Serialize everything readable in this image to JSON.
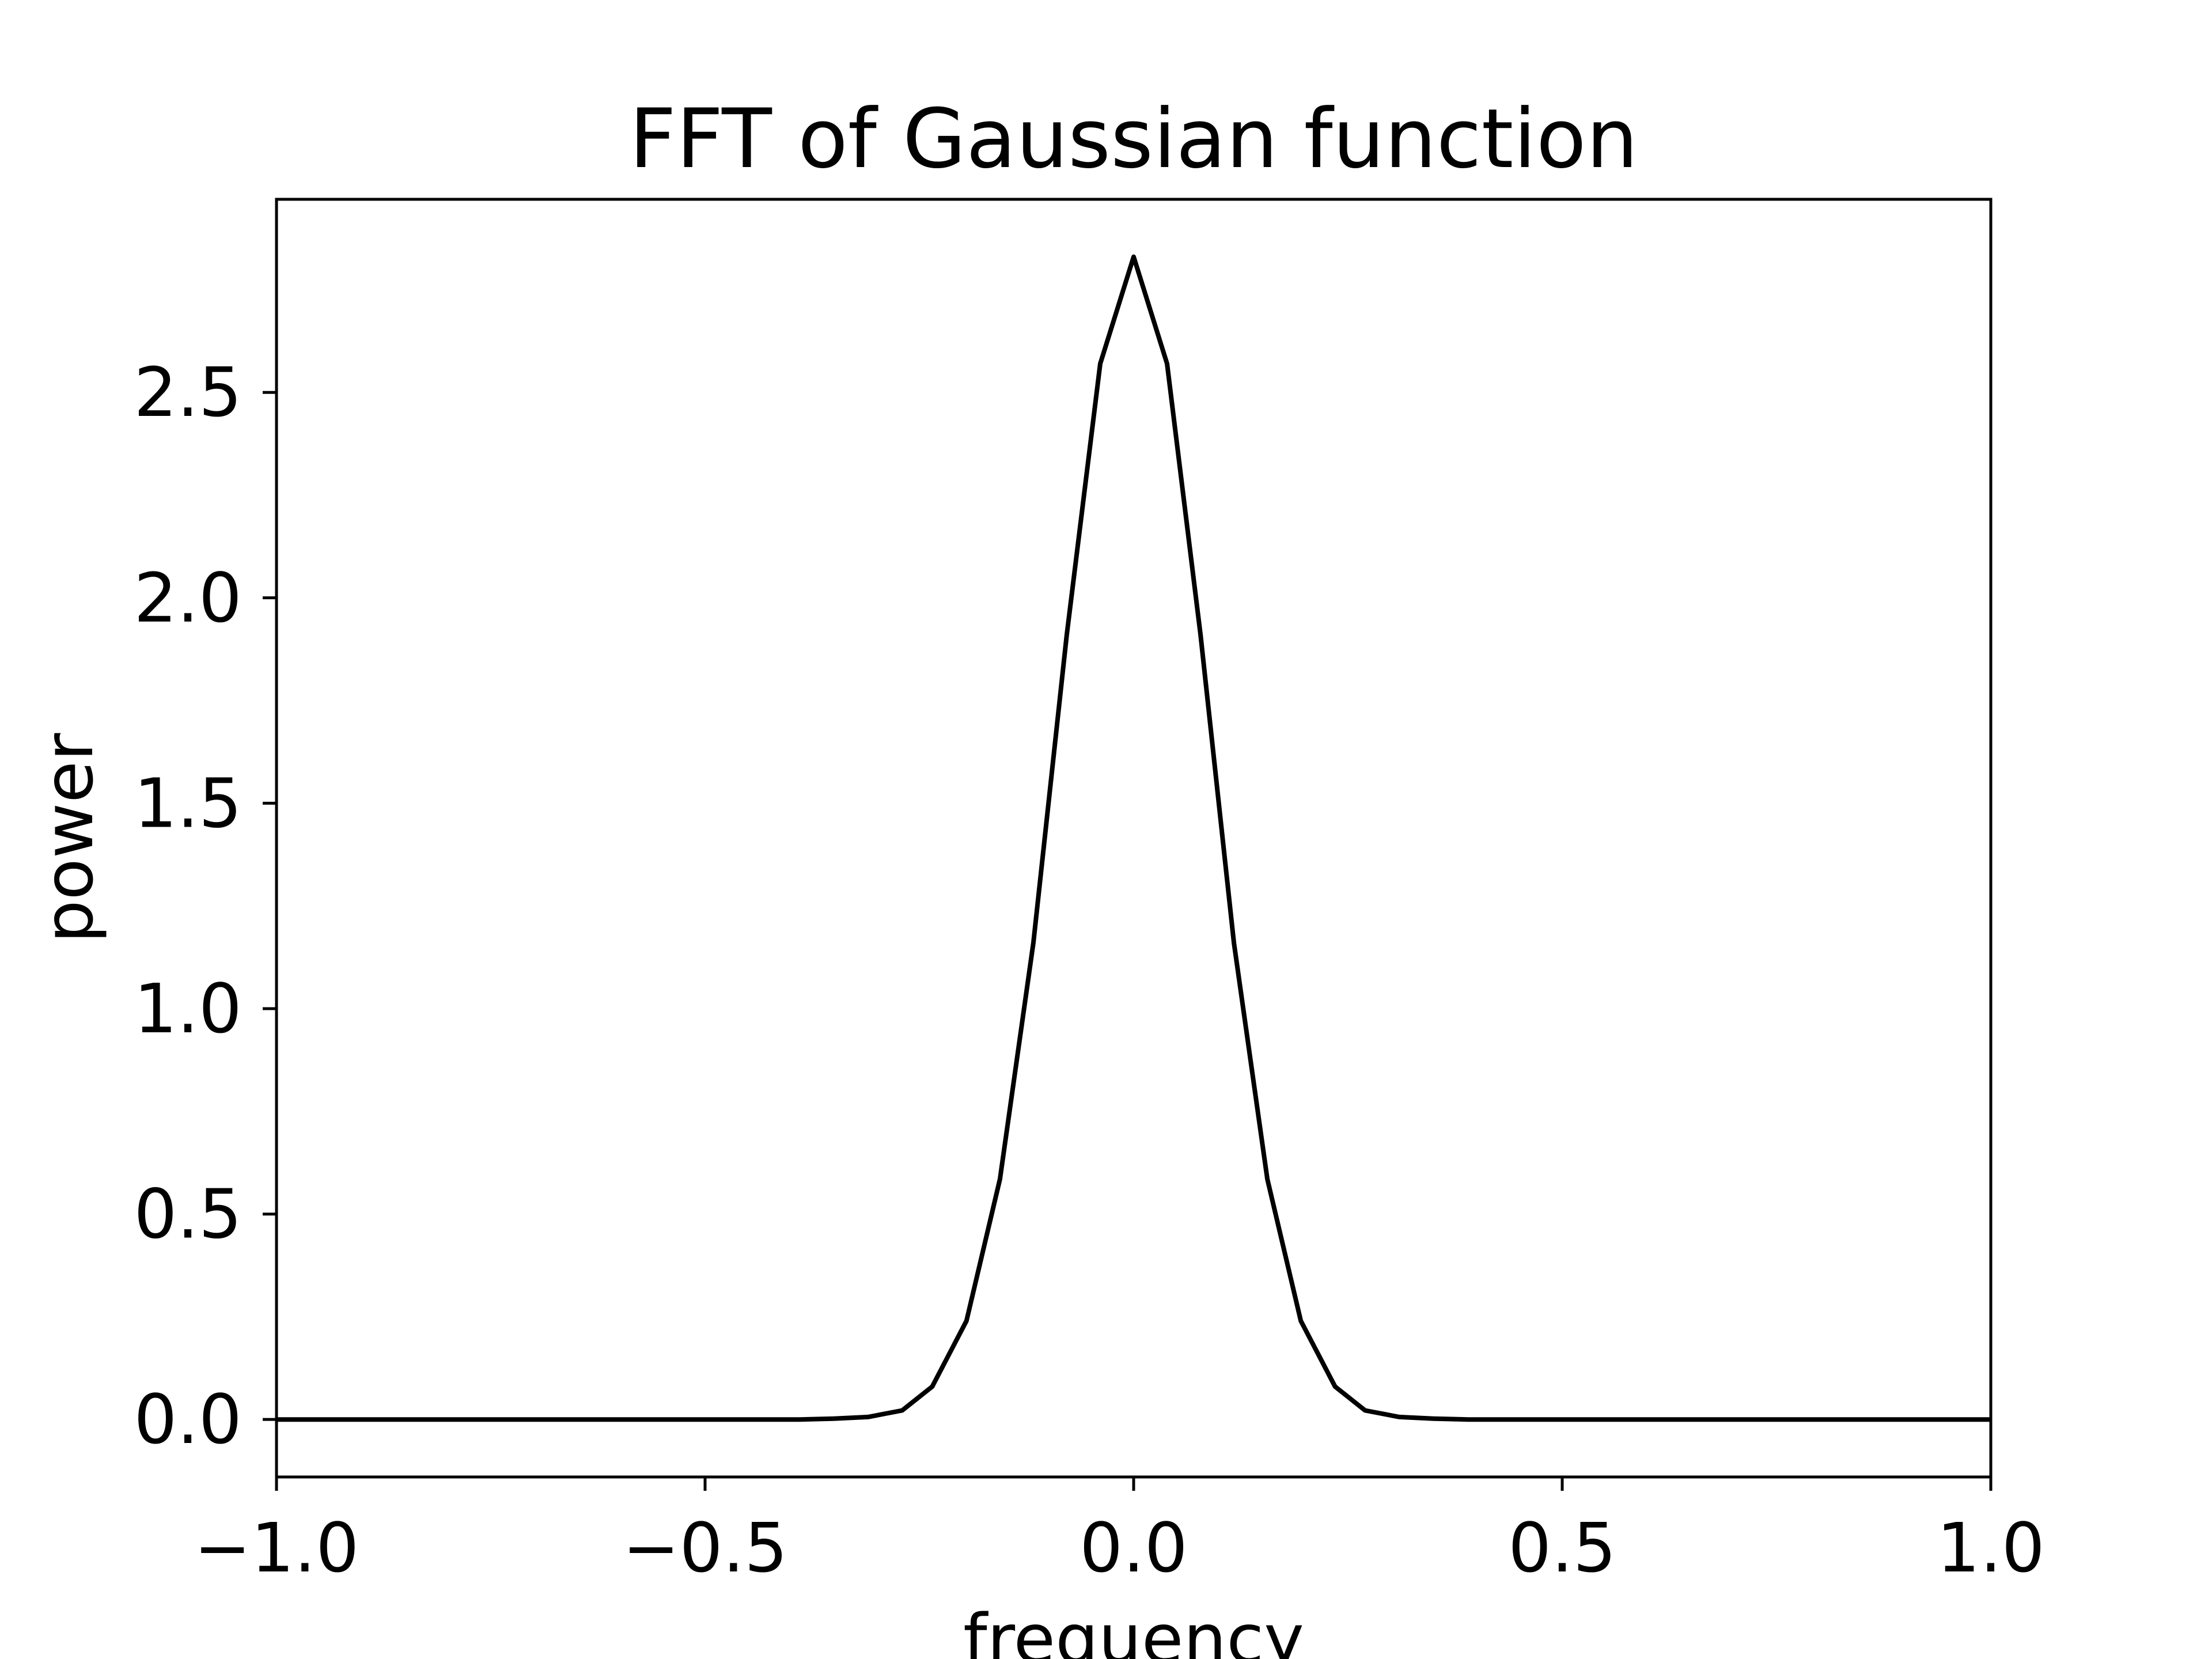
{
  "chart_data": {
    "type": "line",
    "title": "FFT of Gaussian function",
    "xlabel": "frequency",
    "ylabel": "power",
    "xlim": [
      -1.0,
      1.0
    ],
    "ylim": [
      -0.14,
      2.97
    ],
    "xticks": [
      -1.0,
      -0.5,
      0.0,
      0.5,
      1.0
    ],
    "xtick_labels": [
      "−1.0",
      "−0.5",
      "0.0",
      "0.5",
      "1.0"
    ],
    "yticks": [
      0.0,
      0.5,
      1.0,
      1.5,
      2.0,
      2.5
    ],
    "ytick_labels": [
      "0.0",
      "0.5",
      "1.0",
      "1.5",
      "2.0",
      "2.5"
    ],
    "grid": false,
    "line_color": "#000000",
    "series": [
      {
        "x": [
          -1.0,
          -0.5,
          -0.39,
          -0.35,
          -0.31,
          -0.27,
          -0.235,
          -0.195,
          -0.156,
          -0.117,
          -0.078,
          -0.039,
          0.0,
          0.039,
          0.078,
          0.117,
          0.156,
          0.195,
          0.235,
          0.27,
          0.31,
          0.35,
          0.39,
          0.5,
          1.0
        ],
        "values": [
          0.0,
          0.0,
          0.0,
          0.002,
          0.006,
          0.022,
          0.08,
          0.24,
          0.585,
          1.16,
          1.91,
          2.57,
          2.83,
          2.57,
          1.91,
          1.16,
          0.585,
          0.24,
          0.08,
          0.022,
          0.006,
          0.002,
          0.0,
          0.0,
          0.0
        ]
      }
    ]
  }
}
